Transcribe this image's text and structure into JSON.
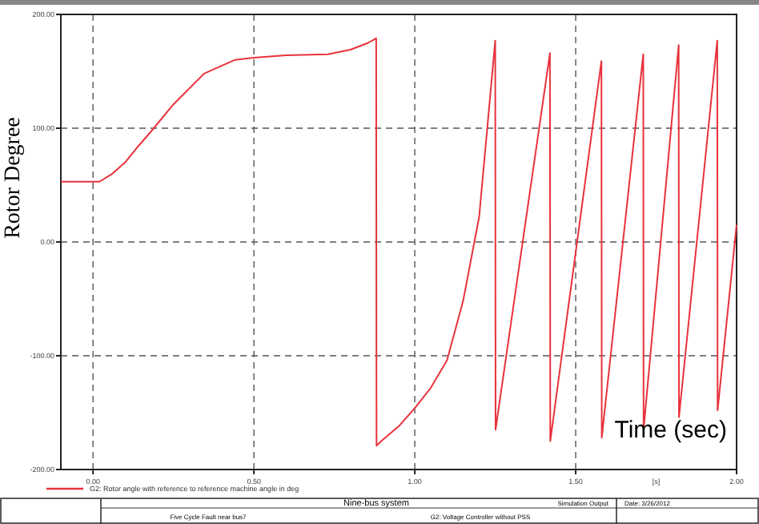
{
  "chart_data": {
    "type": "line",
    "ylabel": "Rotor Degree",
    "xlabel": "[s]",
    "x": [
      -0.1,
      0.02,
      0.06,
      0.1,
      0.14,
      0.18,
      0.25,
      0.345,
      0.44,
      0.5,
      0.6,
      0.73,
      0.8,
      0.855,
      0.88,
      0.881,
      0.9,
      0.95,
      1.0,
      1.05,
      1.1,
      1.15,
      1.2,
      1.25,
      1.251,
      1.42,
      1.421,
      1.58,
      1.581,
      1.71,
      1.711,
      1.82,
      1.821,
      1.94,
      1.941,
      2.0
    ],
    "xlim": [
      -0.1,
      2.0
    ],
    "xticks": [
      {
        "value": 0,
        "label": "0.00"
      },
      {
        "value": 0.5,
        "label": "0.50"
      },
      {
        "value": 1,
        "label": "1.00"
      },
      {
        "value": 1.5,
        "label": "1.50"
      },
      {
        "value": 2,
        "label": "2.00"
      }
    ],
    "ylim": [
      -200,
      200
    ],
    "yticks": [
      {
        "value": -200,
        "label": "-200.00"
      },
      {
        "value": -100,
        "label": "-100.00"
      },
      {
        "value": 0,
        "label": "0.00"
      },
      {
        "value": 100,
        "label": "100.00"
      },
      {
        "value": 200,
        "label": "200.00"
      }
    ],
    "series": [
      {
        "name": "G2: Rotor angle with reference to reference machine angle in deg",
        "color": "#e8323c",
        "values": [
          53,
          53,
          60,
          70,
          84,
          97,
          121,
          148,
          160,
          162,
          164,
          165,
          169,
          175,
          179,
          -179,
          -174,
          -162,
          -146,
          -128,
          -104,
          -52,
          22,
          177,
          -165,
          166,
          -175,
          159,
          -172,
          165,
          -165,
          173,
          -154,
          177,
          -148,
          15
        ]
      }
    ],
    "grid": true,
    "legend": "bottom",
    "marker": "none",
    "line_style": "solid",
    "annotations": [
      "Time (sec)",
      "Nine-bus system",
      "Five Cycle Fault near bus7",
      "Simulation Output",
      "G2: Voltage Controller without PSS",
      "Date: 3/26/2012"
    ]
  }
}
